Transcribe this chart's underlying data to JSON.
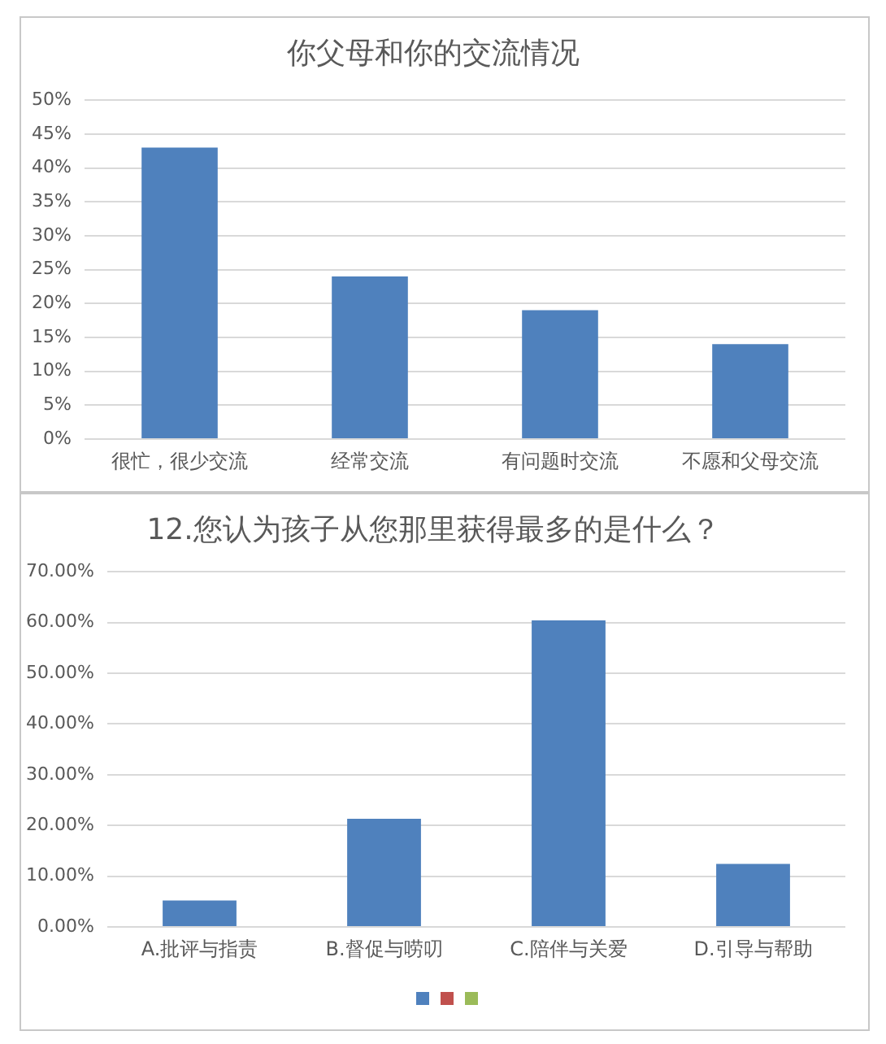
{
  "chart_data": [
    {
      "type": "bar",
      "title": "你父母和你的交流情况",
      "categories": [
        "很忙，很少交流",
        "经常交流",
        "有问题时交流",
        "不愿和父母交流"
      ],
      "values": [
        43,
        24,
        19,
        14
      ],
      "color": "#4f81bd",
      "ylim": [
        0,
        50
      ],
      "yticks": [
        {
          "value": 0,
          "label": "0%"
        },
        {
          "value": 5,
          "label": "5%"
        },
        {
          "value": 10,
          "label": "10%"
        },
        {
          "value": 15,
          "label": "15%"
        },
        {
          "value": 20,
          "label": "20%"
        },
        {
          "value": 25,
          "label": "25%"
        },
        {
          "value": 30,
          "label": "30%"
        },
        {
          "value": 35,
          "label": "35%"
        },
        {
          "value": 40,
          "label": "40%"
        },
        {
          "value": 45,
          "label": "45%"
        },
        {
          "value": 50,
          "label": "50%"
        }
      ],
      "grid": "y"
    },
    {
      "type": "bar",
      "title": "12.您认为孩子从您那里获得最多的是什么？",
      "categories": [
        "A.批评与指责",
        "B.督促与唠叨",
        "C.陪伴与关爱",
        "D.引导与帮助"
      ],
      "values": [
        5.2,
        21.3,
        60.4,
        12.4
      ],
      "color": "#4f81bd",
      "ylim": [
        0,
        70
      ],
      "yticks": [
        {
          "value": 0,
          "label": "0.00%"
        },
        {
          "value": 10,
          "label": "10.00%"
        },
        {
          "value": 20,
          "label": "20.00%"
        },
        {
          "value": 30,
          "label": "30.00%"
        },
        {
          "value": 40,
          "label": "40.00%"
        },
        {
          "value": 50,
          "label": "50.00%"
        },
        {
          "value": 60,
          "label": "60.00%"
        },
        {
          "value": 70,
          "label": "70.00%"
        }
      ],
      "grid": "y"
    }
  ]
}
